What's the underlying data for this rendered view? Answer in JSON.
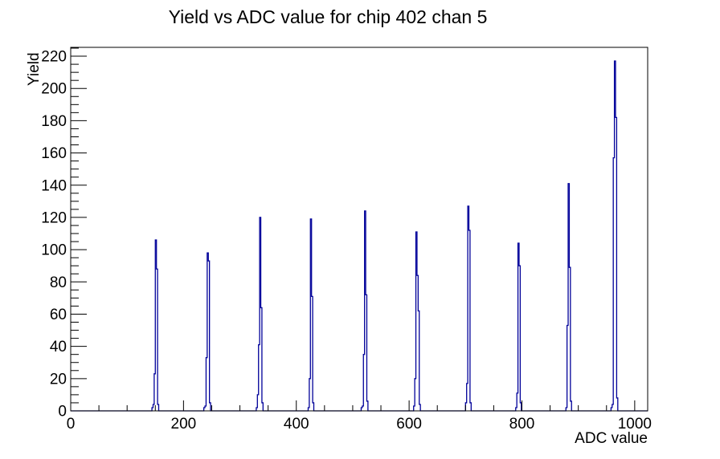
{
  "chart_data": {
    "type": "bar",
    "subtype": "step-histogram",
    "title": "Yield vs ADC value for chip 402 chan 5",
    "xlabel": "ADC value",
    "ylabel": "Yield",
    "xlim": [
      0,
      1023
    ],
    "ylim": [
      0,
      225.5
    ],
    "x_tick_labels": [
      "0",
      "200",
      "400",
      "600",
      "800",
      "1000"
    ],
    "x_tick_values": [
      0,
      200,
      400,
      600,
      800,
      1000
    ],
    "x_minor_step": 50,
    "y_tick_labels": [
      "0",
      "20",
      "40",
      "60",
      "80",
      "100",
      "120",
      "140",
      "160",
      "180",
      "200",
      "220"
    ],
    "y_tick_values": [
      0,
      20,
      40,
      60,
      80,
      100,
      120,
      140,
      160,
      180,
      200,
      220
    ],
    "y_minor_step": 5,
    "grid": false,
    "legend": null,
    "line_color": "#000099",
    "axis_color": "#000000",
    "background_color": "#ffffff",
    "bin_width": 2,
    "peaks": [
      {
        "center": 150,
        "peak_yield": 106,
        "bins": [
          [
            144,
            2
          ],
          [
            146,
            4
          ],
          [
            148,
            23
          ],
          [
            150,
            106
          ],
          [
            152,
            88
          ],
          [
            154,
            4
          ]
        ]
      },
      {
        "center": 242,
        "peak_yield": 98,
        "bins": [
          [
            236,
            2
          ],
          [
            238,
            3
          ],
          [
            240,
            33
          ],
          [
            242,
            98
          ],
          [
            244,
            93
          ],
          [
            246,
            5
          ]
        ]
      },
      {
        "center": 335,
        "peak_yield": 120,
        "bins": [
          [
            329,
            2
          ],
          [
            331,
            10
          ],
          [
            333,
            41
          ],
          [
            335,
            120
          ],
          [
            337,
            64
          ],
          [
            339,
            5
          ]
        ]
      },
      {
        "center": 426,
        "peak_yield": 119,
        "bins": [
          [
            421,
            2
          ],
          [
            423,
            20
          ],
          [
            425,
            119
          ],
          [
            427,
            71
          ],
          [
            429,
            5
          ]
        ]
      },
      {
        "center": 521,
        "peak_yield": 124,
        "bins": [
          [
            515,
            2
          ],
          [
            517,
            3
          ],
          [
            519,
            35
          ],
          [
            521,
            124
          ],
          [
            523,
            72
          ],
          [
            525,
            6
          ]
        ]
      },
      {
        "center": 613,
        "peak_yield": 111,
        "bins": [
          [
            608,
            3
          ],
          [
            610,
            20
          ],
          [
            612,
            111
          ],
          [
            614,
            84
          ],
          [
            616,
            62
          ],
          [
            618,
            4
          ]
        ]
      },
      {
        "center": 704,
        "peak_yield": 127,
        "bins": [
          [
            700,
            5
          ],
          [
            702,
            17
          ],
          [
            704,
            127
          ],
          [
            706,
            112
          ],
          [
            708,
            5
          ]
        ]
      },
      {
        "center": 793,
        "peak_yield": 104,
        "bins": [
          [
            789,
            2
          ],
          [
            791,
            11
          ],
          [
            793,
            104
          ],
          [
            795,
            90
          ],
          [
            797,
            5
          ]
        ]
      },
      {
        "center": 882,
        "peak_yield": 141,
        "bins": [
          [
            878,
            2
          ],
          [
            880,
            53
          ],
          [
            882,
            141
          ],
          [
            884,
            89
          ],
          [
            886,
            6
          ]
        ]
      },
      {
        "center": 964,
        "peak_yield": 217,
        "bins": [
          [
            958,
            2
          ],
          [
            960,
            4
          ],
          [
            962,
            157
          ],
          [
            964,
            217
          ],
          [
            966,
            182
          ],
          [
            968,
            8
          ]
        ]
      }
    ]
  }
}
